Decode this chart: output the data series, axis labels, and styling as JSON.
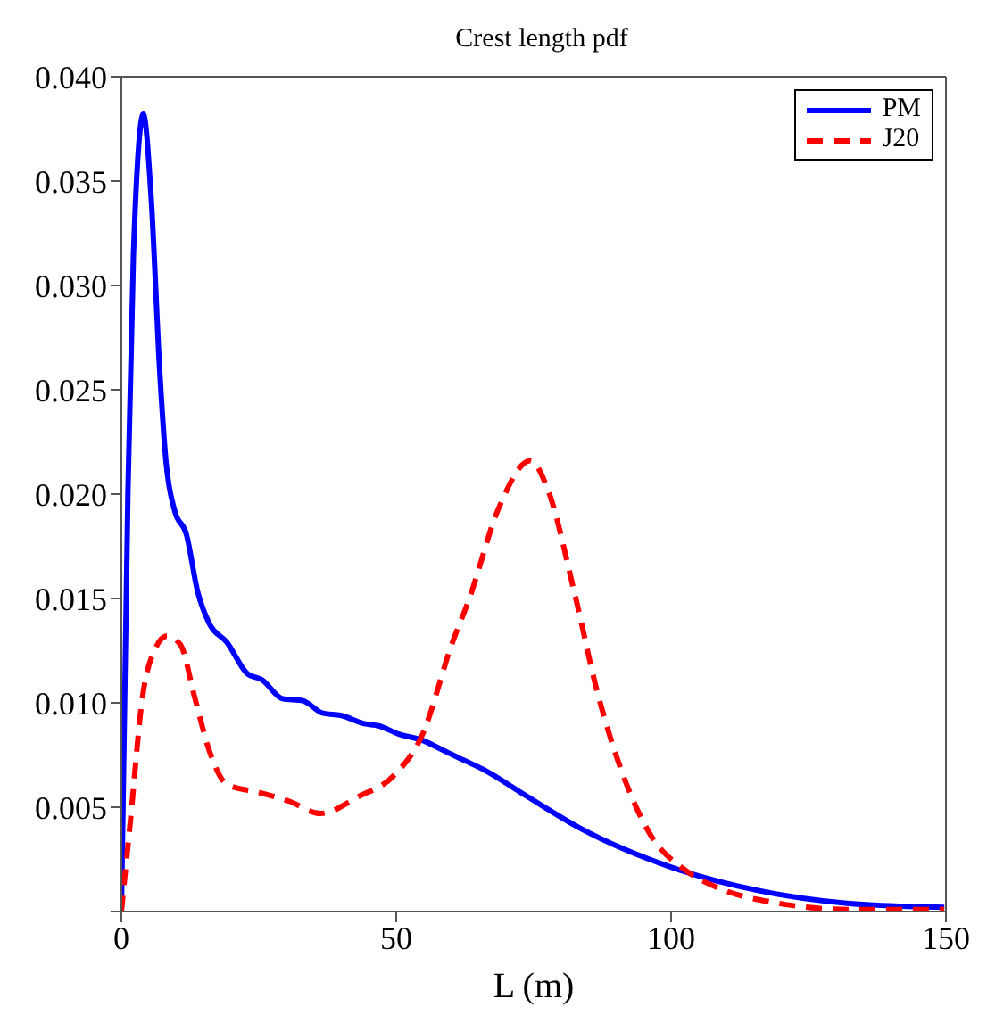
{
  "chart_data": {
    "type": "line",
    "title": "Crest length pdf",
    "xlabel": "L (m)",
    "xlim": [
      0,
      150
    ],
    "xticks": [
      0,
      50,
      100,
      150
    ],
    "ylim": [
      0,
      0.04
    ],
    "yticks": [
      {
        "value": 0,
        "label": null
      },
      0.005,
      {
        "value": 0.01,
        "label": "0.010"
      },
      0.015,
      {
        "value": 0.02,
        "label": "0.020"
      },
      0.025,
      {
        "value": 0.03,
        "label": "0.030"
      },
      0.035,
      {
        "value": 0.04,
        "label": "0.040"
      }
    ],
    "legend": "top right",
    "grid": false,
    "marker": "none",
    "series": [
      {
        "name": "PM",
        "color": "#0000ff",
        "line_style": "solid",
        "x": [
          0,
          1.2,
          2.2,
          4.0,
          5.4,
          7.0,
          8.1,
          9.7,
          11.8,
          13.9,
          16.0,
          19.2,
          22.9,
          25.6,
          29.3,
          33.0,
          36.7,
          39.9,
          44.2,
          46.8,
          50.5,
          54.8,
          58.0,
          61.1,
          65.9,
          73.9,
          83.4,
          100.3,
          116,
          132,
          149.7
        ],
        "values": [
          0,
          0.0202,
          0.0315,
          0.0382,
          0.0343,
          0.0258,
          0.0216,
          0.0192,
          0.0181,
          0.0153,
          0.0138,
          0.0129,
          0.0114,
          0.0111,
          0.0102,
          0.0101,
          0.0095,
          0.0094,
          0.009,
          0.0089,
          0.0085,
          0.0082,
          0.0078,
          0.0074,
          0.0068,
          0.0055,
          0.004,
          0.0021,
          0.001,
          0.0004,
          0.0002
        ]
      },
      {
        "name": "J20",
        "color": "#ff0000",
        "line_style": "dashed",
        "x": [
          0,
          1.7,
          3.8,
          6.0,
          8.3,
          10.7,
          13.4,
          16.0,
          19.2,
          25.1,
          30.4,
          36.2,
          43.1,
          49.5,
          54.8,
          60.1,
          63.3,
          68.6,
          74.4,
          77.6,
          82.4,
          86.6,
          90.9,
          96.2,
          102.5,
          108.9,
          119.5,
          132.3,
          149.7
        ],
        "values": [
          0,
          0.0045,
          0.0102,
          0.0125,
          0.0132,
          0.0128,
          0.0102,
          0.0077,
          0.0061,
          0.0057,
          0.0053,
          0.0047,
          0.0055,
          0.0065,
          0.0085,
          0.0128,
          0.015,
          0.0193,
          0.0216,
          0.0202,
          0.0153,
          0.0105,
          0.0068,
          0.0037,
          0.002,
          0.0011,
          0.0004,
          0.0001,
          0.0001
        ]
      }
    ]
  }
}
